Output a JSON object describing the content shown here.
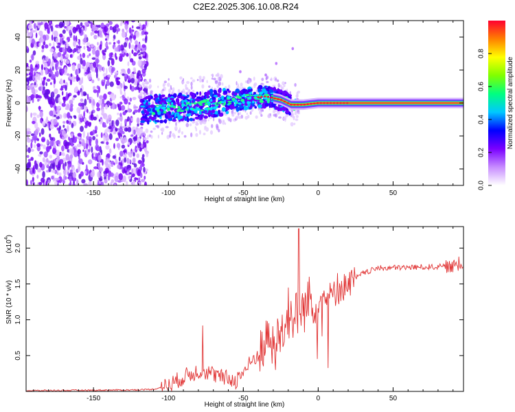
{
  "title": "C2E2.2025.306.10.08.R24",
  "chart_data": [
    {
      "type": "heatmap",
      "xlabel": "Height of straight line (km)",
      "ylabel": "Frequency (Hz)",
      "xlim": [
        -195,
        97
      ],
      "ylim": [
        -50,
        50
      ],
      "xticks": [
        "-150",
        "-100",
        "-50",
        "0",
        "50"
      ],
      "xtick_values": [
        -150,
        -100,
        -50,
        0,
        50
      ],
      "yticks": [
        "40",
        "20",
        "0",
        "-20",
        "-40"
      ],
      "ytick_values": [
        40,
        20,
        0,
        -20,
        -40
      ],
      "colorbar": {
        "label": "Normalized spectral amplitude",
        "range": [
          0,
          1
        ],
        "ticks": [
          "0.0",
          "0.2",
          "0.4",
          "0.6",
          "0.8"
        ],
        "tick_values": [
          0.0,
          0.2,
          0.4,
          0.6,
          0.8
        ],
        "colors": [
          "#ffffff",
          "#c78cff",
          "#7a00ff",
          "#0000ff",
          "#00c8ff",
          "#00ff80",
          "#80ff00",
          "#ffff00",
          "#ff8000",
          "#ff0030"
        ]
      },
      "noise_region": {
        "x_from": -195,
        "x_to": -118,
        "freq_range": [
          -50,
          50
        ]
      },
      "signal_ridge": [
        {
          "x": -118,
          "freq": -4
        },
        {
          "x": -100,
          "freq": -3
        },
        {
          "x": -80,
          "freq": -2
        },
        {
          "x": -60,
          "freq": 1
        },
        {
          "x": -45,
          "freq": 3
        },
        {
          "x": -35,
          "freq": 4
        },
        {
          "x": -25,
          "freq": 2
        },
        {
          "x": -18,
          "freq": -1
        },
        {
          "x": -10,
          "freq": -1
        },
        {
          "x": 0,
          "freq": 0
        },
        {
          "x": 20,
          "freq": 0
        },
        {
          "x": 50,
          "freq": 0
        },
        {
          "x": 95,
          "freq": 0
        }
      ]
    },
    {
      "type": "line",
      "xlabel": "Height of straight line (km)",
      "ylabel": "SNR (10 * v/v)",
      "multiplier_label": "(x10",
      "multiplier_exp": "4",
      "xlim": [
        -195,
        97
      ],
      "ylim": [
        0,
        2.3
      ],
      "xticks": [
        "-150",
        "-100",
        "-50",
        "0",
        "50"
      ],
      "xtick_values": [
        -150,
        -100,
        -50,
        0,
        50
      ],
      "yticks": [
        "0.5",
        "1.0",
        "1.5",
        "2.0"
      ],
      "ytick_values": [
        0.5,
        1.0,
        1.5,
        2.0
      ],
      "color": "#e03030",
      "series_envelope": [
        {
          "x": -195,
          "y": 0.01
        },
        {
          "x": -125,
          "y": 0.02
        },
        {
          "x": -110,
          "y": 0.03
        },
        {
          "x": -100,
          "y": 0.08
        },
        {
          "x": -90,
          "y": 0.2
        },
        {
          "x": -78,
          "y": 0.3
        },
        {
          "x": -65,
          "y": 0.2
        },
        {
          "x": -55,
          "y": 0.15
        },
        {
          "x": -45,
          "y": 0.4
        },
        {
          "x": -35,
          "y": 0.65
        },
        {
          "x": -28,
          "y": 0.7
        },
        {
          "x": -20,
          "y": 1.0
        },
        {
          "x": -12,
          "y": 1.1
        },
        {
          "x": -5,
          "y": 1.25
        },
        {
          "x": 10,
          "y": 1.35
        },
        {
          "x": 20,
          "y": 1.5
        },
        {
          "x": 30,
          "y": 1.65
        },
        {
          "x": 40,
          "y": 1.72
        },
        {
          "x": 60,
          "y": 1.73
        },
        {
          "x": 80,
          "y": 1.74
        },
        {
          "x": 97,
          "y": 1.75
        }
      ],
      "peaks": [
        {
          "x": -77,
          "y": 0.92
        },
        {
          "x": -34,
          "y": 0.98
        },
        {
          "x": -20,
          "y": 1.45
        },
        {
          "x": -13,
          "y": 2.27
        },
        {
          "x": -6,
          "y": 1.6
        },
        {
          "x": 13,
          "y": 1.65
        },
        {
          "x": 94,
          "y": 1.88
        }
      ]
    }
  ]
}
